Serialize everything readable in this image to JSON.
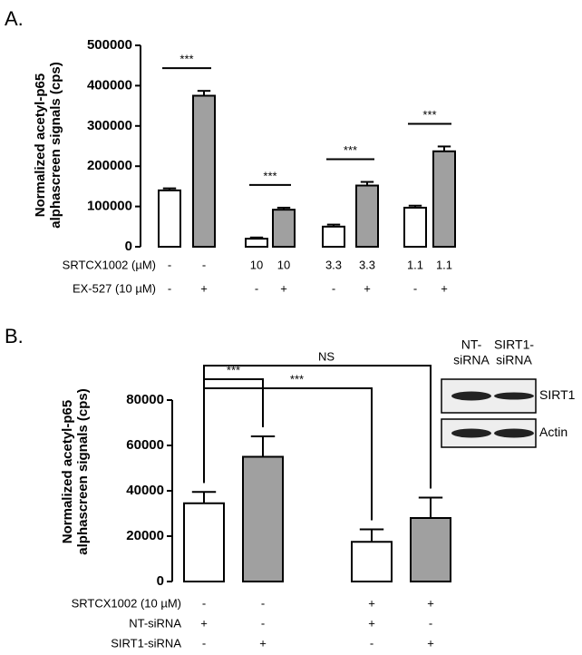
{
  "chart_data": [
    {
      "type": "bar",
      "panel": "A.",
      "y_label": [
        "Normalized acetyl-p65",
        "alphascreen signals (cps)"
      ],
      "values": [
        140000,
        375000,
        20000,
        92000,
        50000,
        152000,
        97000,
        237000
      ],
      "errors": [
        5000,
        12000,
        3000,
        5000,
        5000,
        9000,
        5000,
        12000
      ],
      "colors": [
        "#ffffff",
        "#a0a0a0",
        "#ffffff",
        "#a0a0a0",
        "#ffffff",
        "#a0a0a0",
        "#ffffff",
        "#a0a0a0"
      ],
      "ylim": [
        0,
        500000
      ],
      "yticks": [
        0,
        100000,
        200000,
        300000,
        400000,
        500000
      ],
      "conditions": [
        {
          "label": "SRTCX1002 (µM)",
          "values": [
            "-",
            "-",
            "10",
            "10",
            "3.3",
            "3.3",
            "1.1",
            "1.1"
          ]
        },
        {
          "label": "EX-527 (10 µM)",
          "values": [
            "-",
            "+",
            "-",
            "+",
            "-",
            "+",
            "-",
            "+"
          ]
        }
      ],
      "annotations": [
        {
          "text": "***",
          "from": 0,
          "to": 1
        },
        {
          "text": "***",
          "from": 2,
          "to": 3
        },
        {
          "text": "***",
          "from": 4,
          "to": 5
        },
        {
          "text": "***",
          "from": 6,
          "to": 7
        }
      ]
    },
    {
      "type": "bar",
      "panel": "B.",
      "y_label": [
        "Normalized acetyl-p65",
        "alphascreen signals (cps)"
      ],
      "values": [
        34500,
        55000,
        17500,
        28000
      ],
      "errors": [
        5000,
        9000,
        5500,
        9000
      ],
      "colors": [
        "#ffffff",
        "#a0a0a0",
        "#ffffff",
        "#a0a0a0"
      ],
      "ylim": [
        0,
        80000
      ],
      "yticks": [
        0,
        20000,
        40000,
        60000,
        80000
      ],
      "conditions": [
        {
          "label": "SRTCX1002 (10 µM)",
          "values": [
            "-",
            "-",
            "+",
            "+"
          ]
        },
        {
          "label": "NT-siRNA",
          "values": [
            "+",
            "-",
            "+",
            "-"
          ]
        },
        {
          "label": "SIRT1-siRNA",
          "values": [
            "-",
            "+",
            "-",
            "+"
          ]
        }
      ],
      "annotations": [
        {
          "text": "***",
          "from": 0,
          "to": 1
        },
        {
          "text": "NS",
          "from": 0,
          "to": 3
        },
        {
          "text": "***",
          "from": 0,
          "to": 2
        }
      ],
      "blot": {
        "lanes": [
          [
            "NT-",
            "siRNA"
          ],
          [
            "SIRT1-",
            "siRNA"
          ]
        ],
        "rows": [
          "SIRT1",
          "Actin"
        ]
      }
    }
  ]
}
